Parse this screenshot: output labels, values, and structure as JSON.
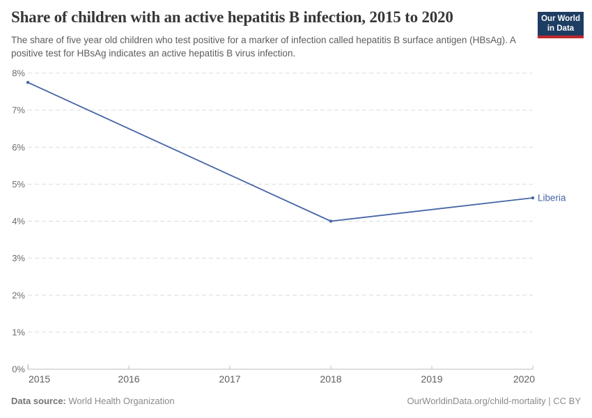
{
  "header": {
    "title": "Share of children with an active hepatitis B infection, 2015 to 2020",
    "subtitle": "The share of five year old children who test positive for a marker of infection called hepatitis B surface antigen (HBsAg). A positive test for HBsAg indicates an active hepatitis B virus infection.",
    "logo": {
      "line1": "Our World",
      "line2": "in Data",
      "bg_color": "#1d3d63",
      "accent_color": "#c0282d"
    }
  },
  "chart_data": {
    "type": "line",
    "title": "Share of children with an active hepatitis B infection, 2015 to 2020",
    "xlabel": "",
    "ylabel": "",
    "x_ticks": [
      2015,
      2016,
      2017,
      2018,
      2019,
      2020
    ],
    "y_tick_values": [
      0,
      1,
      2,
      3,
      4,
      5,
      6,
      7,
      8
    ],
    "y_tick_labels": [
      "0%",
      "1%",
      "2%",
      "3%",
      "4%",
      "5%",
      "6%",
      "7%",
      "8%"
    ],
    "ylim": [
      0,
      8
    ],
    "xlim": [
      2015,
      2020
    ],
    "grid": "horizontal-dashed",
    "legend_position": "line-end-label",
    "series": [
      {
        "name": "Liberia",
        "color": "#4666a5",
        "x": [
          2015,
          2018,
          2020
        ],
        "values": [
          7.75,
          4.0,
          4.63
        ]
      }
    ],
    "colors": {
      "gridline": "#dcdcdc",
      "axis": "#bdbdbd",
      "y_tick_label": "#6c6c6c",
      "x_tick_label": "#5e5e5e"
    }
  },
  "footer": {
    "datasource_label": "Data source:",
    "datasource_value": "World Health Organization",
    "credit": "OurWorldinData.org/child-mortality | CC BY"
  }
}
